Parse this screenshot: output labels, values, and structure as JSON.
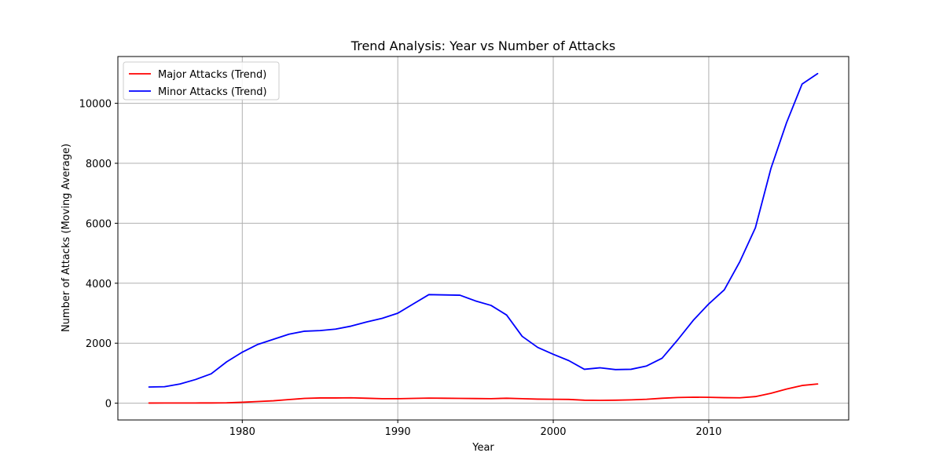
{
  "chart_data": {
    "type": "line",
    "title": "Trend Analysis: Year vs Number of Attacks",
    "xlabel": "Year",
    "ylabel": "Number of Attacks (Moving Average)",
    "xlim": [
      1972,
      2019
    ],
    "ylim": [
      -560,
      11560
    ],
    "xticks": [
      1980,
      1990,
      2000,
      2010
    ],
    "yticks": [
      0,
      2000,
      4000,
      6000,
      8000,
      10000
    ],
    "grid": true,
    "legend_position": "top-left",
    "x": [
      1974,
      1975,
      1976,
      1977,
      1978,
      1979,
      1980,
      1981,
      1982,
      1983,
      1984,
      1985,
      1986,
      1987,
      1988,
      1989,
      1990,
      1991,
      1992,
      1993,
      1994,
      1995,
      1996,
      1997,
      1998,
      1999,
      2000,
      2001,
      2002,
      2003,
      2004,
      2005,
      2006,
      2007,
      2008,
      2009,
      2010,
      2011,
      2012,
      2013,
      2014,
      2015,
      2016,
      2017
    ],
    "series": [
      {
        "name": "Major Attacks (Trend)",
        "color": "#ff0000",
        "values": [
          5,
          6,
          6,
          7,
          8,
          12,
          30,
          55,
          80,
          120,
          160,
          175,
          175,
          180,
          165,
          150,
          150,
          160,
          170,
          165,
          160,
          155,
          150,
          165,
          150,
          135,
          130,
          125,
          100,
          95,
          100,
          110,
          130,
          165,
          190,
          200,
          195,
          185,
          180,
          220,
          330,
          470,
          590,
          640
        ]
      },
      {
        "name": "Minor Attacks (Trend)",
        "color": "#0000ff",
        "values": [
          540,
          550,
          640,
          790,
          980,
          1380,
          1700,
          1960,
          2130,
          2300,
          2400,
          2420,
          2470,
          2570,
          2710,
          2830,
          3000,
          3310,
          3620,
          3610,
          3600,
          3410,
          3260,
          2940,
          2230,
          1860,
          1630,
          1420,
          1130,
          1180,
          1120,
          1130,
          1240,
          1500,
          2110,
          2760,
          3310,
          3780,
          4720,
          5850,
          7830,
          9350,
          10640,
          10990
        ]
      }
    ]
  }
}
